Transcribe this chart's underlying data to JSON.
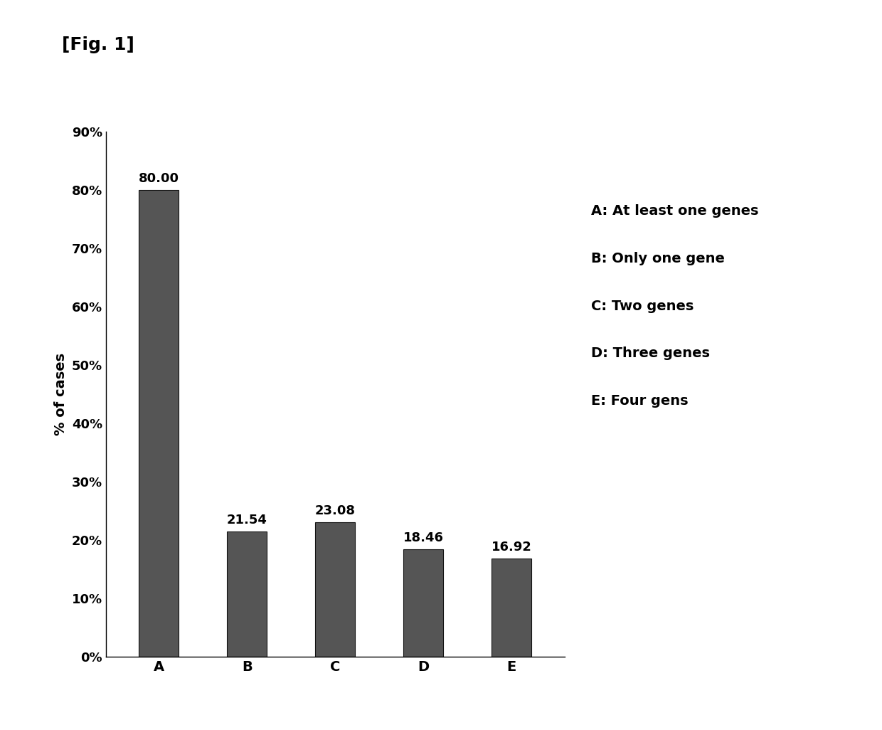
{
  "categories": [
    "A",
    "B",
    "C",
    "D",
    "E"
  ],
  "values": [
    80.0,
    21.54,
    23.08,
    18.46,
    16.92
  ],
  "bar_color": "#555555",
  "ylabel": "% of cases",
  "ylim": [
    0,
    90
  ],
  "yticks": [
    0,
    10,
    20,
    30,
    40,
    50,
    60,
    70,
    80,
    90
  ],
  "ytick_labels": [
    "0%",
    "10%",
    "20%",
    "30%",
    "40%",
    "50%",
    "60%",
    "70%",
    "80%",
    "90%"
  ],
  "legend_entries": [
    "A: At least one genes",
    "B: Only one gene",
    "C: Two genes",
    "D: Three genes",
    "E: Four gens"
  ],
  "fig_label": "[Fig. 1]",
  "background_color": "#ffffff",
  "bar_edgecolor": "#111111",
  "label_fontsize": 14,
  "tick_fontsize": 13,
  "value_fontsize": 13,
  "legend_fontsize": 14,
  "fig_label_fontsize": 18
}
